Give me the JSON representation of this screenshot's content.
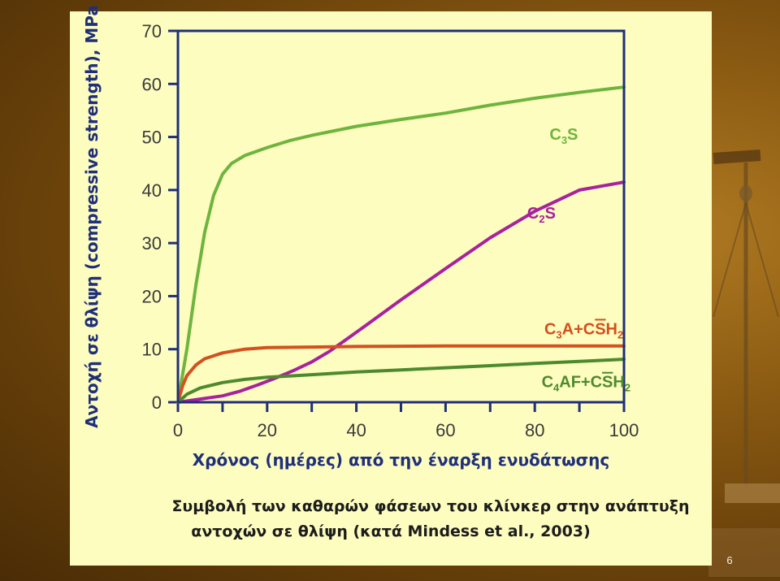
{
  "page_number": "6",
  "caption": {
    "line1": "Συμβολή των καθαρών φάσεων του κλίνκερ στην ανάπτυξη",
    "line2": "αντοχών σε θλίψη (κατά Mindess et al., 2003)"
  },
  "colors": {
    "panel": "#fdfdc0",
    "axis": "#1f2f7a",
    "c3s": "#6fb43e",
    "c2s": "#a8229e",
    "c3a": "#d4501e",
    "c4af": "#4d8a2e"
  },
  "chart_data": {
    "type": "line",
    "xlabel": "Χρόνος (ημέρες) από την έναρξη ενυδάτωσης",
    "ylabel": "Αντοχή σε θλίψη (compressive strength), MPa",
    "xlim": [
      0,
      100
    ],
    "ylim": [
      0,
      70
    ],
    "xticks": [
      0,
      20,
      40,
      60,
      80,
      100
    ],
    "yticks": [
      0,
      10,
      20,
      30,
      40,
      50,
      60,
      70
    ],
    "grid": false,
    "legend": "labels next to curves",
    "series": [
      {
        "key": "c3s",
        "name_parts": [
          [
            "C",
            ""
          ],
          [
            "3",
            "sub"
          ],
          [
            "S",
            ""
          ]
        ],
        "points": [
          [
            0,
            0
          ],
          [
            2,
            10
          ],
          [
            4,
            22
          ],
          [
            6,
            32
          ],
          [
            8,
            39
          ],
          [
            10,
            43
          ],
          [
            12,
            45
          ],
          [
            15,
            46.5
          ],
          [
            20,
            48
          ],
          [
            25,
            49.3
          ],
          [
            30,
            50.3
          ],
          [
            40,
            52
          ],
          [
            50,
            53.3
          ],
          [
            60,
            54.5
          ],
          [
            70,
            56
          ],
          [
            80,
            57.3
          ],
          [
            90,
            58.4
          ],
          [
            100,
            59.4
          ]
        ]
      },
      {
        "key": "c2s",
        "name_parts": [
          [
            "C",
            ""
          ],
          [
            "2",
            "sub"
          ],
          [
            "S",
            ""
          ]
        ],
        "points": [
          [
            0,
            0
          ],
          [
            5,
            0.6
          ],
          [
            10,
            1.2
          ],
          [
            14,
            2.1
          ],
          [
            18,
            3.3
          ],
          [
            22,
            4.6
          ],
          [
            26,
            6
          ],
          [
            30,
            7.6
          ],
          [
            34,
            9.6
          ],
          [
            38,
            12
          ],
          [
            42,
            14.4
          ],
          [
            50,
            19.3
          ],
          [
            60,
            25.2
          ],
          [
            70,
            31
          ],
          [
            80,
            36
          ],
          [
            90,
            40
          ],
          [
            100,
            41.5
          ]
        ]
      },
      {
        "key": "c3a",
        "name_parts": [
          [
            "C",
            ""
          ],
          [
            "3",
            "sub"
          ],
          [
            "A+C",
            ""
          ],
          [
            "S",
            "bar"
          ],
          [
            "H",
            ""
          ],
          [
            "2",
            "sub"
          ]
        ],
        "points": [
          [
            0,
            0
          ],
          [
            1,
            3
          ],
          [
            2,
            5
          ],
          [
            4,
            7
          ],
          [
            6,
            8.2
          ],
          [
            10,
            9.3
          ],
          [
            15,
            10
          ],
          [
            20,
            10.3
          ],
          [
            30,
            10.4
          ],
          [
            40,
            10.5
          ],
          [
            60,
            10.6
          ],
          [
            80,
            10.6
          ],
          [
            100,
            10.6
          ]
        ]
      },
      {
        "key": "c4af",
        "name_parts": [
          [
            "C",
            ""
          ],
          [
            "4",
            "sub"
          ],
          [
            "AF+C",
            ""
          ],
          [
            "S",
            "bar"
          ],
          [
            "H",
            ""
          ],
          [
            "2",
            "sub"
          ]
        ],
        "points": [
          [
            0,
            0
          ],
          [
            2,
            1.5
          ],
          [
            5,
            2.7
          ],
          [
            10,
            3.7
          ],
          [
            15,
            4.3
          ],
          [
            20,
            4.7
          ],
          [
            30,
            5.2
          ],
          [
            40,
            5.7
          ],
          [
            50,
            6.1
          ],
          [
            60,
            6.5
          ],
          [
            70,
            6.9
          ],
          [
            80,
            7.3
          ],
          [
            90,
            7.7
          ],
          [
            100,
            8.1
          ]
        ]
      }
    ]
  }
}
